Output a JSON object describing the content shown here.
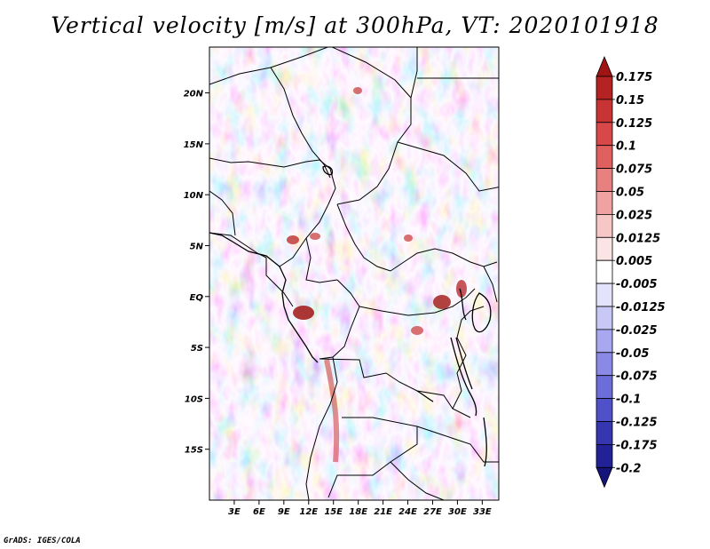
{
  "title": "Vertical velocity [m/s] at 300hPa, VT: 2020101918",
  "footer": "GrADS: IGES/COLA",
  "map": {
    "lat_labels": [
      "20N",
      "15N",
      "10N",
      "5N",
      "EQ",
      "5S",
      "10S",
      "15S"
    ],
    "lon_labels": [
      "3E",
      "6E",
      "9E",
      "12E",
      "15E",
      "18E",
      "21E",
      "24E",
      "27E",
      "30E",
      "33E"
    ],
    "lat_values": [
      20,
      15,
      10,
      5,
      0,
      -5,
      -10,
      -15
    ],
    "lon_values": [
      3,
      6,
      9,
      12,
      15,
      18,
      21,
      24,
      27,
      30,
      33
    ],
    "extent": {
      "lon_min": 0,
      "lon_max": 35,
      "lat_min": -20,
      "lat_max": 24.5
    }
  },
  "colorbar": {
    "levels": [
      "0.175",
      "0.15",
      "0.125",
      "0.1",
      "0.075",
      "0.05",
      "0.025",
      "0.0125",
      "0.005",
      "-0.005",
      "-0.0125",
      "-0.025",
      "-0.05",
      "-0.075",
      "-0.1",
      "-0.125",
      "-0.175",
      "-0.2"
    ],
    "colors": [
      "#a01414",
      "#b52222",
      "#c83434",
      "#d84848",
      "#e06060",
      "#e88080",
      "#f0a2a2",
      "#f7c6c6",
      "#fbe4e4",
      "#ffffff",
      "#e3e3fb",
      "#c8c8f6",
      "#a8a8f0",
      "#8a8ae6",
      "#6d6dda",
      "#5050c8",
      "#3636b0",
      "#222296",
      "#14147a"
    ]
  }
}
